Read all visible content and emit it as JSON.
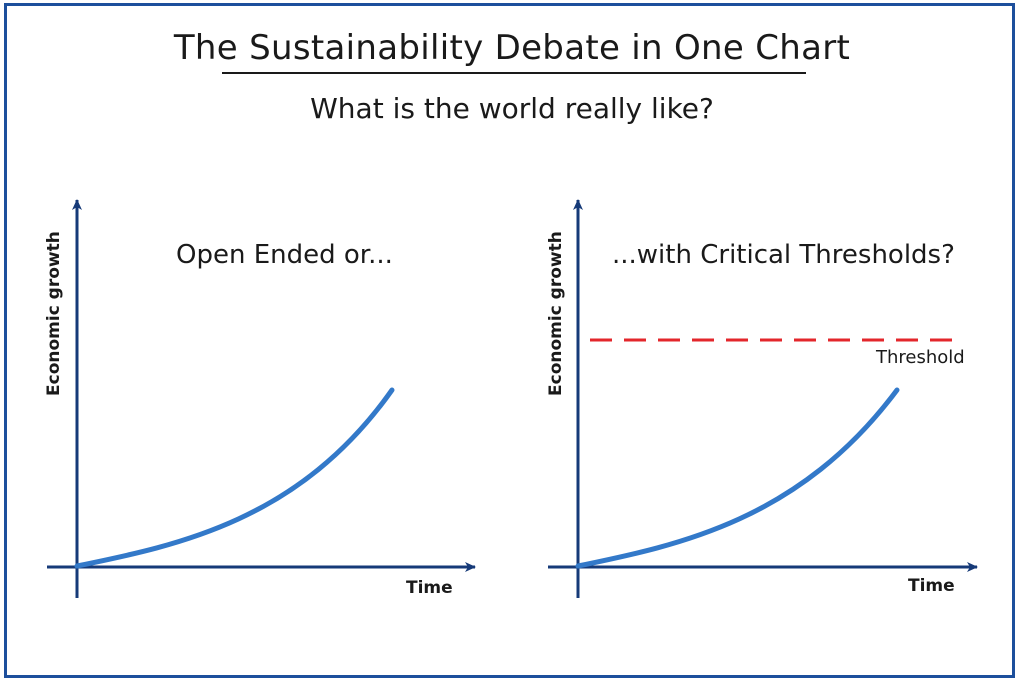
{
  "title": "The Sustainability Debate in One Chart",
  "subtitle": "What is the world really like?",
  "colors": {
    "frame": "#1d4f9c",
    "axis": "#163a78",
    "curve": "#3379c9",
    "threshold": "#e3262b"
  },
  "panels": [
    {
      "label": "Open Ended or...",
      "ylabel": "Economic growth",
      "xlabel": "Time"
    },
    {
      "label": "...with Critical Thresholds?",
      "ylabel": "Economic growth",
      "xlabel": "Time",
      "threshold_label": "Threshold"
    }
  ]
}
